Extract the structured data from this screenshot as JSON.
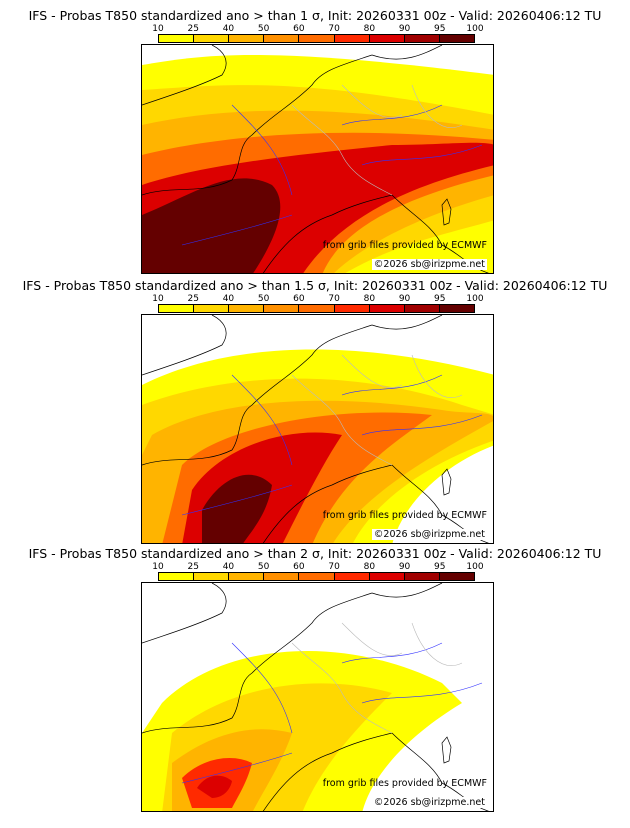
{
  "panels": [
    {
      "title": "IFS - Probas T850  standardized ano > than 1 σ, Init: 20260331 00z - Valid: 20260406:12 TU",
      "sigma": 1
    },
    {
      "title": "IFS - Probas T850  standardized ano > than 1.5 σ, Init: 20260331 00z - Valid: 20260406:12 TU",
      "sigma": 1.5
    },
    {
      "title": "IFS - Probas T850  standardized ano > than 2 σ, Init: 20260331 00z - Valid: 20260406:12 TU",
      "sigma": 2
    }
  ],
  "colorbar": {
    "ticks": [
      "10",
      "25",
      "40",
      "50",
      "60",
      "70",
      "80",
      "90",
      "95",
      "100"
    ],
    "colors": [
      "#ffff00",
      "#ffd800",
      "#ffb400",
      "#ff9000",
      "#ff6c00",
      "#ff2a00",
      "#dc0000",
      "#a00000",
      "#640000"
    ]
  },
  "credits": {
    "source": "from grib files provided by ECMWF",
    "copyright": "©2026 sb@irizpme.net"
  }
}
